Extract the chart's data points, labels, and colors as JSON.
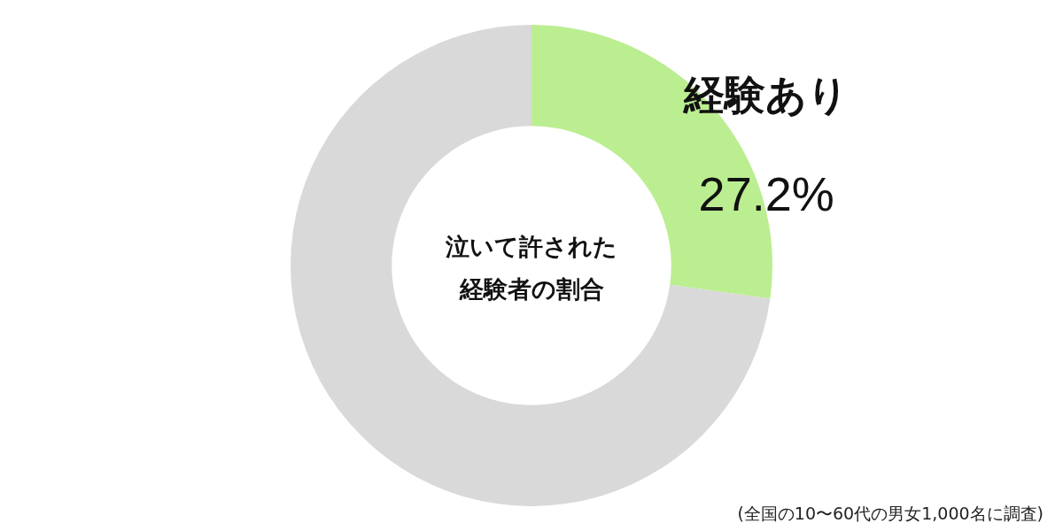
{
  "chart_data": {
    "type": "donut",
    "title": "泣いて許された経験者の割合",
    "categories": [
      "経験あり",
      null
    ],
    "values": [
      27.2,
      72.8
    ],
    "colors": [
      "#bbee90",
      "#d9d9d9"
    ],
    "value_labels": [
      "27.2%",
      null
    ],
    "annotations": [
      "(全国の10〜60代の男女1,000名に調査)"
    ]
  }
}
